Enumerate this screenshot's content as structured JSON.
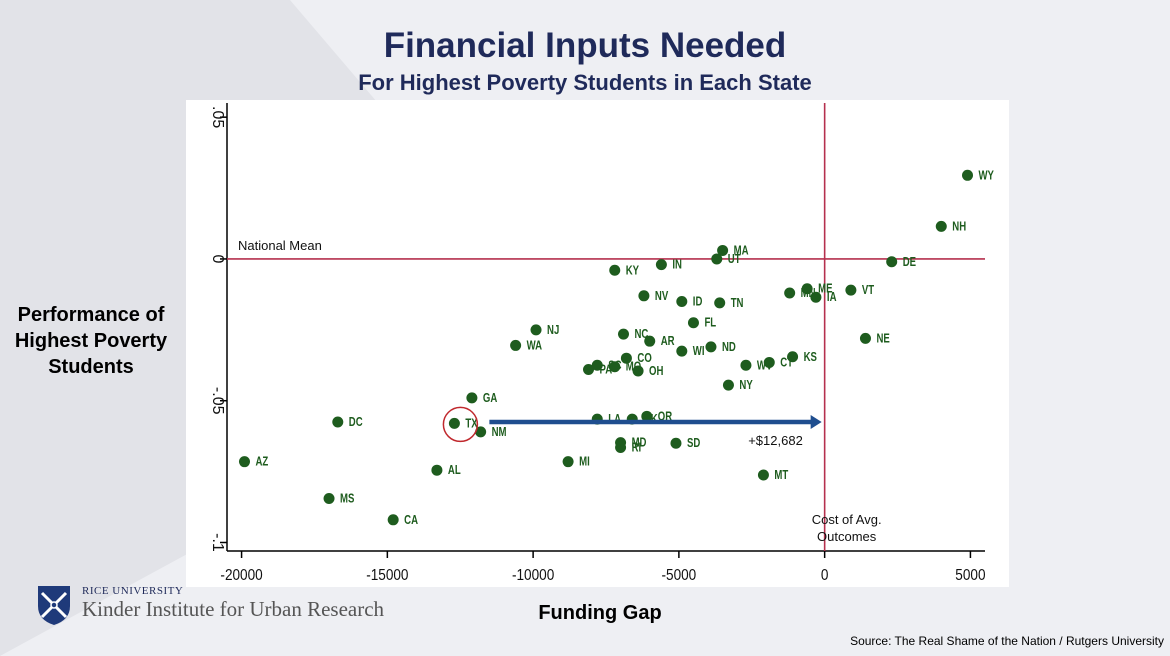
{
  "title": "Financial Inputs Needed",
  "subtitle": "For Highest Poverty Students in Each State",
  "ylabel_lines": [
    "Performance of",
    "Highest Poverty",
    "Students"
  ],
  "xlabel": "Funding Gap",
  "source": "Source: The Real Shame of the Nation / Rutgers University",
  "logo": {
    "university": "RICE UNIVERSITY",
    "institute": "Kinder Institute for Urban Research"
  },
  "colors": {
    "point": "#1e5c1e",
    "ref_line": "#b5304e",
    "arrow": "#1f4e8f",
    "title": "#1f2a5a"
  },
  "chart_data": {
    "type": "scatter",
    "xlim": [
      -20500,
      5500
    ],
    "ylim": [
      -0.103,
      0.055
    ],
    "x_ticks": [
      -20000,
      -15000,
      -10000,
      -5000,
      0,
      5000
    ],
    "x_tick_labels": [
      "-20000",
      "-15000",
      "-10000",
      "-5000",
      "0",
      "5000"
    ],
    "y_ticks": [
      0.05,
      0,
      -0.05,
      -0.1
    ],
    "y_tick_labels": [
      ".05",
      "0",
      "-.05",
      "-.1"
    ],
    "grid": false,
    "reference_lines": {
      "horizontal": {
        "y": 0,
        "label": "National Mean"
      },
      "vertical": {
        "x": 0,
        "label_lines": [
          "Cost of Avg.",
          "Outcomes"
        ]
      }
    },
    "annotation": {
      "label": "+$12,682",
      "from": [
        -11500,
        -0.0575
      ],
      "to": [
        0,
        -0.0575
      ],
      "highlight_state": "TX"
    },
    "points": [
      {
        "label": "WY",
        "x": 4900,
        "y": 0.0295
      },
      {
        "label": "NH",
        "x": 4000,
        "y": 0.0115
      },
      {
        "label": "DE",
        "x": 2300,
        "y": -0.001
      },
      {
        "label": "VT",
        "x": 900,
        "y": -0.011
      },
      {
        "label": "NE",
        "x": 1400,
        "y": -0.028
      },
      {
        "label": "MA",
        "x": -3500,
        "y": 0.003
      },
      {
        "label": "UT",
        "x": -3700,
        "y": 0
      },
      {
        "label": "IN",
        "x": -5600,
        "y": -0.002
      },
      {
        "label": "KY",
        "x": -7200,
        "y": -0.004
      },
      {
        "label": "NV",
        "x": -6200,
        "y": -0.013
      },
      {
        "label": "ID",
        "x": -4900,
        "y": -0.015
      },
      {
        "label": "TN",
        "x": -3600,
        "y": -0.0155
      },
      {
        "label": "MN",
        "x": -1200,
        "y": -0.012
      },
      {
        "label": "ME",
        "x": -600,
        "y": -0.0105
      },
      {
        "label": "IA",
        "x": -300,
        "y": -0.0135
      },
      {
        "label": "FL",
        "x": -4500,
        "y": -0.0225
      },
      {
        "label": "NJ",
        "x": -9900,
        "y": -0.025
      },
      {
        "label": "WA",
        "x": -10600,
        "y": -0.0305
      },
      {
        "label": "NC",
        "x": -6900,
        "y": -0.0265
      },
      {
        "label": "AR",
        "x": -6000,
        "y": -0.029
      },
      {
        "label": "WI",
        "x": -4900,
        "y": -0.0325
      },
      {
        "label": "ND",
        "x": -3900,
        "y": -0.031
      },
      {
        "label": "CO",
        "x": -6800,
        "y": -0.035
      },
      {
        "label": "KS",
        "x": -1100,
        "y": -0.0345
      },
      {
        "label": "CT",
        "x": -1900,
        "y": -0.0365
      },
      {
        "label": "WV",
        "x": -2700,
        "y": -0.0375
      },
      {
        "label": "PA",
        "x": -8100,
        "y": -0.039
      },
      {
        "label": "SC",
        "x": -7800,
        "y": -0.0375
      },
      {
        "label": "MO",
        "x": -7200,
        "y": -0.038
      },
      {
        "label": "OH",
        "x": -6400,
        "y": -0.0395
      },
      {
        "label": "NY",
        "x": -3300,
        "y": -0.0445
      },
      {
        "label": "GA",
        "x": -12100,
        "y": -0.049
      },
      {
        "label": "TX",
        "x": -12700,
        "y": -0.058
      },
      {
        "label": "NM",
        "x": -11800,
        "y": -0.061
      },
      {
        "label": "DC",
        "x": -16700,
        "y": -0.0575
      },
      {
        "label": "LA",
        "x": -7800,
        "y": -0.0565
      },
      {
        "label": "OK",
        "x": -6600,
        "y": -0.0565
      },
      {
        "label": "OR",
        "x": -6100,
        "y": -0.0555
      },
      {
        "label": "MD",
        "x": -7000,
        "y": -0.0648
      },
      {
        "label": "RI",
        "x": -7000,
        "y": -0.0665
      },
      {
        "label": "SD",
        "x": -5100,
        "y": -0.065
      },
      {
        "label": "AL",
        "x": -13300,
        "y": -0.0745
      },
      {
        "label": "MI",
        "x": -8800,
        "y": -0.0715
      },
      {
        "label": "MT",
        "x": -2100,
        "y": -0.0762
      },
      {
        "label": "AZ",
        "x": -19900,
        "y": -0.0715
      },
      {
        "label": "MS",
        "x": -17000,
        "y": -0.0845
      },
      {
        "label": "CA",
        "x": -14800,
        "y": -0.092
      }
    ]
  }
}
